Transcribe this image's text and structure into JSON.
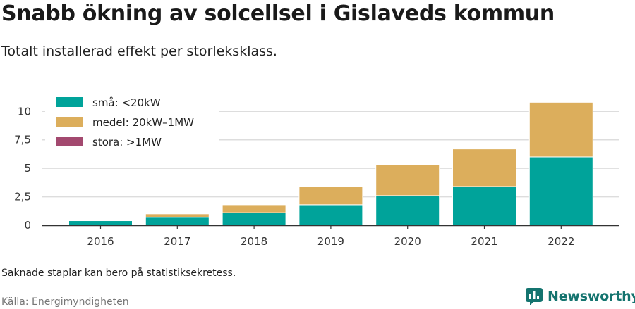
{
  "header": {
    "title": "Snabb ökning av solcellsel i Gislaveds kommun",
    "subtitle": "Totalt installerad effekt per storleksklass."
  },
  "footer": {
    "note": "Saknade staplar kan bero på statistiksekretess.",
    "source": "Källa: Energimyndigheten",
    "brand": "Newsworthy"
  },
  "colors": {
    "small": "#00a39a",
    "medium": "#dcae5c",
    "large": "#a3496f",
    "grid": "#dddddd",
    "axis": "#333333",
    "brand": "#14746f"
  },
  "chart_data": {
    "type": "bar",
    "stacked": true,
    "categories": [
      "2016",
      "2017",
      "2018",
      "2019",
      "2020",
      "2021",
      "2022"
    ],
    "series": [
      {
        "name": "små: <20kW",
        "values": [
          0.4,
          0.7,
          1.1,
          1.8,
          2.6,
          3.4,
          6.0
        ]
      },
      {
        "name": "medel: 20kW–1MW",
        "values": [
          0,
          0.3,
          0.7,
          1.6,
          2.7,
          3.3,
          4.8
        ]
      },
      {
        "name": "stora: >1MW",
        "values": [
          0,
          0,
          0,
          0,
          0,
          0,
          0
        ]
      }
    ],
    "yticks": [
      "0",
      "2,5",
      "5",
      "7,5",
      "10"
    ],
    "ytick_values": [
      0,
      2.5,
      5,
      7.5,
      10
    ],
    "ylim": [
      0,
      11.5
    ],
    "grid": true,
    "legend_position": "top-left"
  }
}
